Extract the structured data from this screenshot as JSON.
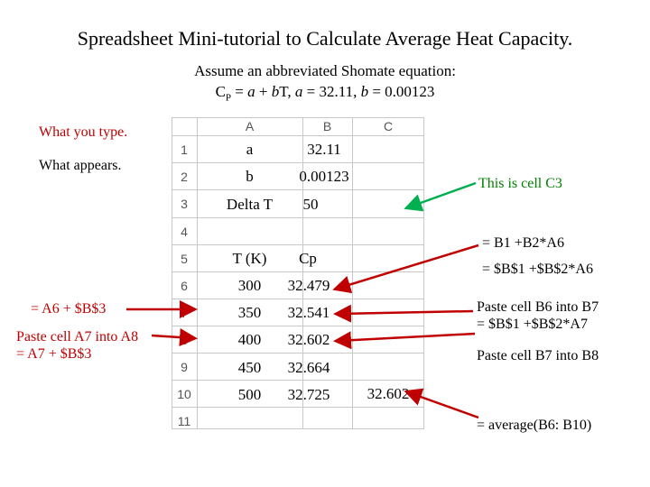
{
  "title": "Spreadsheet Mini-tutorial to Calculate Average Heat Capacity.",
  "assumption": {
    "line1": "Assume an abbreviated Shomate equation:",
    "cp": "C",
    "cp_sub": "P",
    "eq_mid": " = ",
    "a_var": "a",
    "plus": " + ",
    "b_var": "b",
    "t_var": "T,  ",
    "a_var2": "a",
    "a_value": " = 32.11, ",
    "b_var2": "b",
    "b_value": " = 0.00123"
  },
  "legend": {
    "typed": "What you type.",
    "appears": "What appears."
  },
  "sheet": {
    "columns": [
      "A",
      "B",
      "C"
    ],
    "rows": [
      "1",
      "2",
      "3",
      "4",
      "5",
      "6",
      "7",
      "8",
      "9",
      "10",
      "11"
    ],
    "cells": {
      "a1": "a",
      "b1": "32.11",
      "a2": "b",
      "b2": "0.00123",
      "a3": "Delta T",
      "b3": "50",
      "a5": "T (K)",
      "b5": "Cp",
      "a6": "300",
      "b6": "32.479",
      "a7": "350",
      "b7": "32.541",
      "a8": "400",
      "b8": "32.602",
      "a9": "450",
      "b9": "32.664",
      "a10": "500",
      "b10": "32.725",
      "c10": "32.602"
    }
  },
  "annotations": {
    "cell_c3": "This is cell C3",
    "b5_typed": "= B1 +B2*A6",
    "b6_typed": "= $B$1 +$B$2*A6",
    "b7_paste_line1": "Paste cell B6 into B7",
    "b7_paste_line2": "= $B$1 +$B$2*A7",
    "b8_paste": "Paste cell B7 into B8",
    "average": "= average(B6: B10)",
    "a7_typed": "= A6 + $B$3",
    "a8_paste_line1": "Paste cell A7 into A8",
    "a8_paste_line2": "= A7 + $B$3"
  },
  "colors": {
    "typed": "#c00000",
    "appears": "#008000",
    "grid": "#c8c8c8",
    "arrow_red": "#c00000",
    "arrow_green": "#00b050"
  }
}
